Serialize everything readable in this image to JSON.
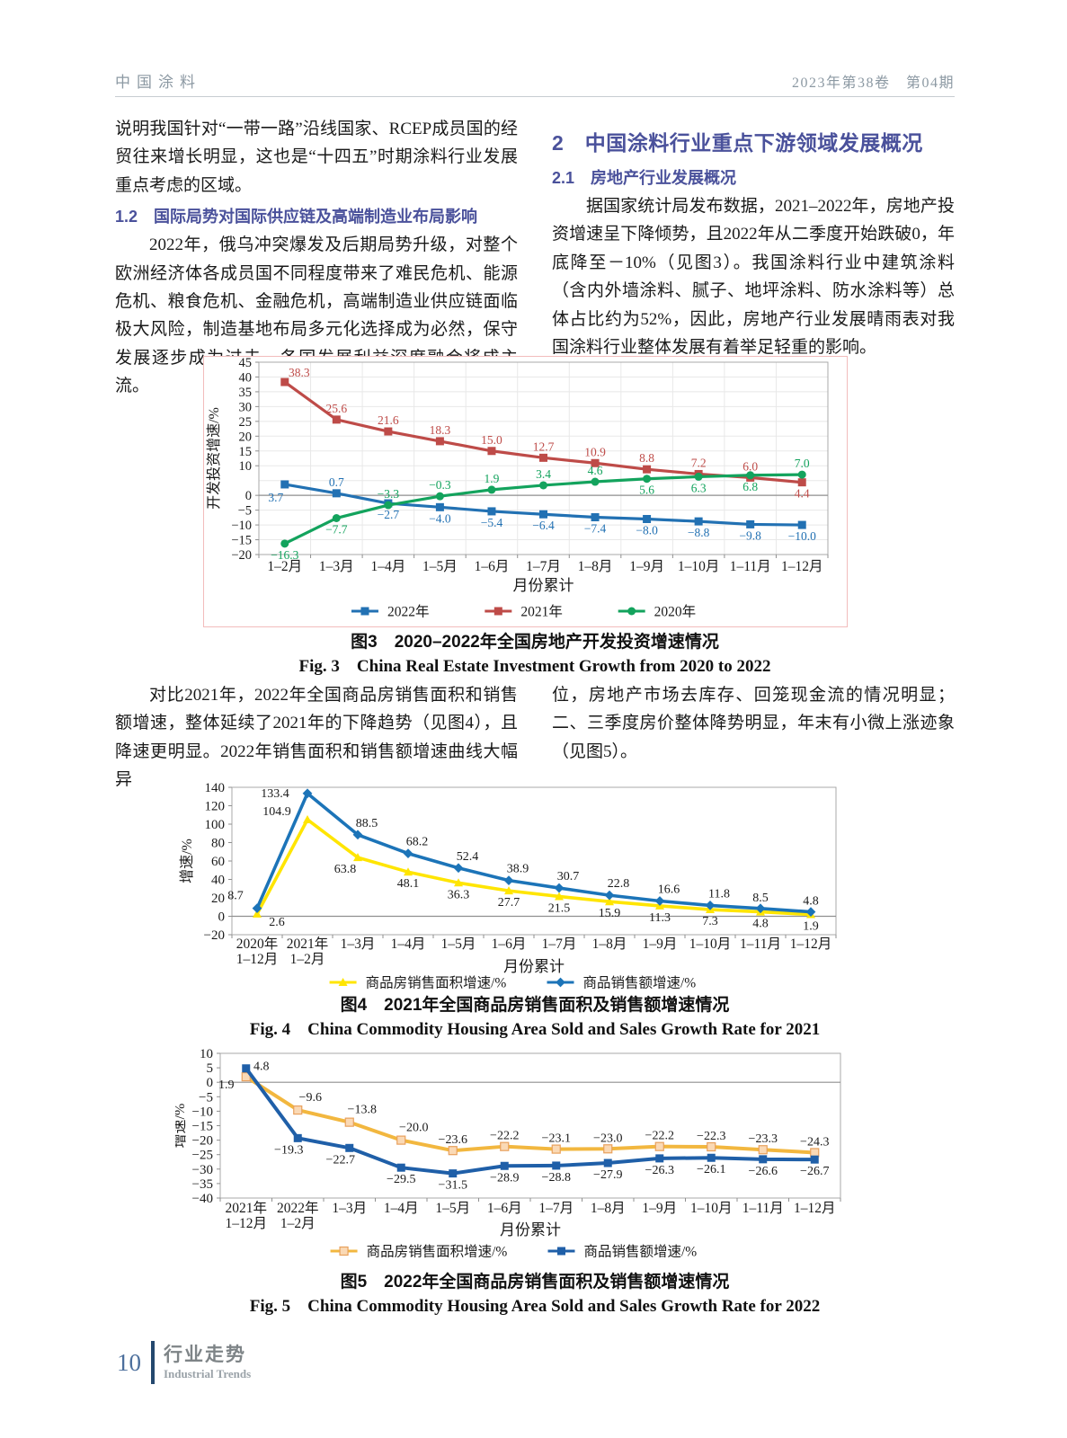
{
  "page": {
    "header": {
      "journal": "中国涂料",
      "issue": "2023年第38卷　第04期"
    },
    "columns_top": {
      "left": {
        "p1": "说明我国针对“一带一路”沿线国家、RCEP成员国的经贸往来增长明显，这也是“十四五”时期涂料行业发展重点考虑的区域。",
        "h12": "1.2　国际局势对国际供应链及高端制造业布局影响",
        "p2": "2022年，俄乌冲突爆发及后期局势升级，对整个欧洲经济体各成员国不同程度带来了难民危机、能源危机、粮食危机、金融危机，高端制造业供应链面临极大风险，制造基地布局多元化选择成为必然，保守发展逐步成为过去，各国发展利益深度融合将成主流。"
      },
      "right": {
        "h2": "2　中国涂料行业重点下游领域发展概况",
        "h21": "2.1　房地产行业发展概况",
        "p3": "据国家统计局发布数据，2021–2022年，房地产投资增速呈下降倾势，且2022年从二季度开始跌破0，年底降至－10%（见图3）。我国涂料行业中建筑涂料（含内外墙涂料、腻子、地坪涂料、防水涂料等）总体占比约为52%，因此，房地产行业发展晴雨表对我国涂料行业整体发展有着举足轻重的影响。"
      }
    },
    "mid": {
      "left": "对比2021年，2022年全国商品房销售面积和销售额增速，整体延续了2021年的下降趋势（见图4），且降速更明显。2022年销售面积和销售额增速曲线大幅异",
      "right": "位，房地产市场去库存、回笼现金流的情况明显；二、三季度房价整体降势明显，年末有小微上涨迹象（见图5）。"
    },
    "footer": {
      "page_no": "10",
      "section_cn": "行业走势",
      "section_en": "Industrial Trends"
    },
    "colors": {
      "heading_blue": "#4a519b",
      "chart3_blue": "#2271b3",
      "chart3_red": "#be4b48",
      "chart3_green": "#13a35d",
      "chart4_yellow": "#ffe500",
      "chart4_blue": "#1c74b8",
      "chart5_orange": "#f2b73f",
      "chart5_blue": "#1f5fa8"
    }
  },
  "chart_data": [
    {
      "id": "fig3",
      "type": "line",
      "title_cn": "图3　2020–2022年全国房地产开发投资增速情况",
      "title_en": "Fig. 3　China Real Estate Investment Growth from 2020 to 2022",
      "ylabel": "开发投资增速/%",
      "xlabel": "月份累计",
      "ylim": [
        -20,
        45
      ],
      "yticks": [
        45,
        40,
        35,
        30,
        25,
        20,
        15,
        10,
        0,
        -5,
        -10,
        -15,
        -20
      ],
      "grid": true,
      "grid_step": 5,
      "legend_position": "bottom",
      "categories": [
        "1–2月",
        "1–3月",
        "1–4月",
        "1–5月",
        "1–6月",
        "1–7月",
        "1–8月",
        "1–9月",
        "1–10月",
        "1–11月",
        "1–12月"
      ],
      "series": [
        {
          "name": "2022年",
          "color": "#2271b3",
          "marker": "square",
          "values": [
            3.7,
            0.7,
            -2.7,
            -4.0,
            -5.4,
            -6.4,
            -7.4,
            -8.0,
            -8.8,
            -9.8,
            -10.0
          ],
          "labels": [
            "3.7",
            "0.7",
            "−2.7",
            "−4.0",
            "−5.4",
            "−6.4",
            "−7.4",
            "−8.0",
            "−8.8",
            "−9.8",
            "−10.0"
          ],
          "label_side": [
            "b",
            "a",
            "b",
            "b",
            "b",
            "b",
            "b",
            "b",
            "b",
            "b",
            "b"
          ],
          "offsets": {
            "0": [
              -10,
              2
            ]
          }
        },
        {
          "name": "2021年",
          "color": "#be4b48",
          "marker": "square",
          "values": [
            38.3,
            25.6,
            21.6,
            18.3,
            15.0,
            12.7,
            10.9,
            8.8,
            7.2,
            6.0,
            4.4
          ],
          "labels": [
            "38.3",
            "25.6",
            "21.6",
            "18.3",
            "15.0",
            "12.7",
            "10.9",
            "8.8",
            "7.2",
            "6.0",
            "4.4"
          ],
          "label_side": [
            "a",
            "a",
            "a",
            "a",
            "a",
            "a",
            "a",
            "a",
            "a",
            "a",
            "b"
          ],
          "offsets": {
            "0": [
              16,
              2
            ]
          }
        },
        {
          "name": "2020年",
          "color": "#13a35d",
          "marker": "circle",
          "values": [
            -16.3,
            -7.7,
            -3.3,
            -0.3,
            1.9,
            3.4,
            4.6,
            5.6,
            6.3,
            6.8,
            7.0
          ],
          "labels": [
            "−16.3",
            "−7.7",
            "−3.3",
            "−0.3",
            "1.9",
            "3.4",
            "4.6",
            "5.6",
            "6.3",
            "6.8",
            "7.0"
          ],
          "label_side": [
            "b",
            "b",
            "a",
            "a",
            "a",
            "a",
            "a",
            "b",
            "b",
            "b",
            "a"
          ]
        }
      ]
    },
    {
      "id": "fig4",
      "type": "line",
      "title_cn": "图4　2021年全国商品房销售面积及销售额增速情况",
      "title_en": "Fig. 4　China Commodity Housing Area Sold and Sales Growth Rate for 2021",
      "ylabel": "增速/%",
      "xlabel": "月份累计",
      "ylim": [
        -20,
        140
      ],
      "yticks": [
        140,
        120,
        100,
        80,
        60,
        40,
        20,
        0,
        -20
      ],
      "grid": false,
      "legend_position": "bottom",
      "categories": [
        "2020年",
        "2021年",
        "1–3月",
        "1–4月",
        "1–5月",
        "1–6月",
        "1–7月",
        "1–8月",
        "1–9月",
        "1–10月",
        "1–11月",
        "1–12月"
      ],
      "categories2": [
        "1–12月",
        "1–2月",
        "",
        "",
        "",
        "",
        "",
        "",
        "",
        "",
        "",
        ""
      ],
      "series": [
        {
          "name": "商品房销售面积增速/%",
          "color": "#ffe500",
          "marker": "triangle",
          "label_color": "#1a1a1a",
          "values": [
            2.6,
            104.9,
            63.8,
            48.1,
            36.3,
            27.7,
            21.5,
            15.9,
            11.3,
            7.3,
            4.8,
            1.9
          ],
          "labels": [
            "2.6",
            "104.9",
            "63.8",
            "48.1",
            "36.3",
            "27.7",
            "21.5",
            "15.9",
            "11.3",
            "7.3",
            "4.8",
            "1.9"
          ],
          "label_side": [
            "b",
            "b",
            "b",
            "b",
            "b",
            "b",
            "b",
            "b",
            "b",
            "b",
            "b",
            "b"
          ],
          "offsets": {
            "0": [
              22,
              -4
            ],
            "1": [
              -34,
              -22
            ],
            "2": [
              -14,
              0
            ]
          }
        },
        {
          "name": "商品销售额增速/%",
          "color": "#1c74b8",
          "marker": "diamond",
          "label_color": "#1a1a1a",
          "values": [
            8.7,
            133.4,
            88.5,
            68.2,
            52.4,
            38.9,
            30.7,
            22.8,
            16.6,
            11.8,
            8.5,
            4.8
          ],
          "labels": [
            "8.7",
            "133.4",
            "88.5",
            "68.2",
            "52.4",
            "38.9",
            "30.7",
            "22.8",
            "16.6",
            "11.8",
            "8.5",
            "4.8"
          ],
          "label_side": [
            "a",
            "a",
            "a",
            "a",
            "a",
            "a",
            "a",
            "a",
            "a",
            "a",
            "a",
            "a"
          ],
          "offsets": {
            "0": [
              -24,
              -2
            ],
            "1": [
              -36,
              12
            ],
            "2": [
              10,
              -1
            ],
            "3": [
              10,
              -1
            ],
            "4": [
              10,
              -1
            ],
            "5": [
              10,
              -1
            ],
            "6": [
              10,
              -1
            ],
            "7": [
              10,
              -1
            ],
            "8": [
              10,
              -1
            ],
            "9": [
              10,
              -1
            ]
          }
        }
      ]
    },
    {
      "id": "fig5",
      "type": "line",
      "title_cn": "图5　2022年全国商品房销售面积及销售额增速情况",
      "title_en": "Fig. 5　China Commodity Housing Area Sold and Sales Growth Rate for 2022",
      "ylabel": "增速/%",
      "xlabel": "月份累计",
      "ylim": [
        -40,
        10
      ],
      "yticks": [
        10,
        5,
        0,
        -5,
        -10,
        -15,
        -20,
        -25,
        -30,
        -35,
        -40
      ],
      "grid": false,
      "legend_position": "bottom",
      "categories": [
        "2021年",
        "2022年",
        "1–3月",
        "1–4月",
        "1–5月",
        "1–6月",
        "1–7月",
        "1–8月",
        "1–9月",
        "1–10月",
        "1–11月",
        "1–12月"
      ],
      "categories2": [
        "1–12月",
        "1–2月",
        "",
        "",
        "",
        "",
        "",
        "",
        "",
        "",
        "",
        ""
      ],
      "series": [
        {
          "name": "商品房销售面积增速/%",
          "color": "#f2b73f",
          "marker": "square",
          "marker_fill": "#fad9b5",
          "marker_stroke": "#e8a05c",
          "label_color": "#1a1a1a",
          "values": [
            1.9,
            -9.6,
            -13.8,
            -20.0,
            -23.6,
            -22.2,
            -23.1,
            -23.0,
            -22.2,
            -22.3,
            -23.3,
            -24.3
          ],
          "labels": [
            "1.9",
            "−9.6",
            "−13.8",
            "−20.0",
            "−23.6",
            "−22.2",
            "−23.1",
            "−23.0",
            "−22.2",
            "−22.3",
            "−23.3",
            "−24.3"
          ],
          "label_side": [
            "b",
            "a",
            "a",
            "a",
            "a",
            "a",
            "a",
            "a",
            "a",
            "a",
            "a",
            "a"
          ],
          "offsets": {
            "0": [
              -22,
              -4
            ],
            "1": [
              14,
              -2
            ],
            "2": [
              14,
              -2
            ],
            "3": [
              14,
              -2
            ]
          }
        },
        {
          "name": "商品销售额增速/%",
          "color": "#1f5fa8",
          "marker": "square",
          "label_color": "#1a1a1a",
          "values": [
            4.8,
            -19.3,
            -22.7,
            -29.5,
            -31.5,
            -28.9,
            -28.8,
            -27.9,
            -26.3,
            -26.1,
            -26.6,
            -26.7
          ],
          "labels": [
            "4.8",
            "−19.3",
            "−22.7",
            "−29.5",
            "−31.5",
            "−28.9",
            "−28.8",
            "−27.9",
            "−26.3",
            "−26.1",
            "−26.6",
            "−26.7"
          ],
          "label_side": [
            "a",
            "b",
            "b",
            "b",
            "b",
            "b",
            "b",
            "b",
            "b",
            "b",
            "b",
            "b"
          ],
          "offsets": {
            "0": [
              17,
              10
            ],
            "1": [
              -10,
              0
            ],
            "2": [
              -10,
              0
            ]
          }
        }
      ]
    }
  ]
}
